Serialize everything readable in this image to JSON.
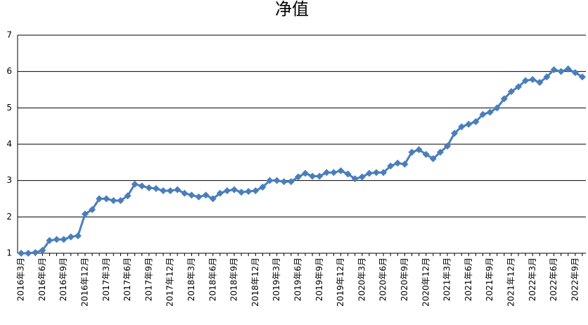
{
  "chart_data": {
    "type": "line",
    "title": "净值",
    "categories": [
      "2016年3月",
      null,
      null,
      "2016年6月",
      null,
      null,
      "2016年9月",
      null,
      null,
      "2016年12月",
      null,
      null,
      "2017年3月",
      null,
      null,
      "2017年6月",
      null,
      null,
      "2017年9月",
      null,
      null,
      "2017年12月",
      null,
      null,
      "2018年3月",
      null,
      null,
      "2018年6月",
      null,
      null,
      "2018年9月",
      null,
      null,
      "2018年12月",
      null,
      null,
      "2019年3月",
      null,
      null,
      "2019年6月",
      null,
      null,
      "2019年9月",
      null,
      null,
      "2019年12月",
      null,
      null,
      "2020年3月",
      null,
      null,
      "2020年6月",
      null,
      null,
      "2020年9月",
      null,
      null,
      "2020年12月",
      null,
      null,
      "2021年3月",
      null,
      null,
      "2021年6月",
      null,
      null,
      "2021年9月",
      null,
      null,
      "2021年12月",
      null,
      null,
      "2022年3月",
      null,
      null,
      "2022年6月",
      null,
      null,
      "2022年9月",
      null
    ],
    "values": [
      1.0,
      1.0,
      1.02,
      1.08,
      1.35,
      1.38,
      1.38,
      1.45,
      1.48,
      2.08,
      2.2,
      2.5,
      2.5,
      2.45,
      2.45,
      2.58,
      2.9,
      2.85,
      2.8,
      2.78,
      2.72,
      2.72,
      2.75,
      2.65,
      2.6,
      2.55,
      2.6,
      2.5,
      2.65,
      2.72,
      2.75,
      2.68,
      2.7,
      2.72,
      2.82,
      3.0,
      3.0,
      2.97,
      2.97,
      3.1,
      3.2,
      3.12,
      3.12,
      3.22,
      3.22,
      3.27,
      3.18,
      3.05,
      3.1,
      3.2,
      3.22,
      3.22,
      3.4,
      3.48,
      3.45,
      3.78,
      3.85,
      3.72,
      3.6,
      3.78,
      3.95,
      4.3,
      4.48,
      4.55,
      4.62,
      4.82,
      4.88,
      5.0,
      5.25,
      5.45,
      5.58,
      5.75,
      5.78,
      5.7,
      5.85,
      6.05,
      6.0,
      6.07,
      5.97,
      5.85
    ],
    "color": "#4a7ebb",
    "ylim": [
      1,
      7
    ],
    "yticks": [
      1,
      2,
      3,
      4,
      5,
      6,
      7
    ],
    "grid": true
  }
}
